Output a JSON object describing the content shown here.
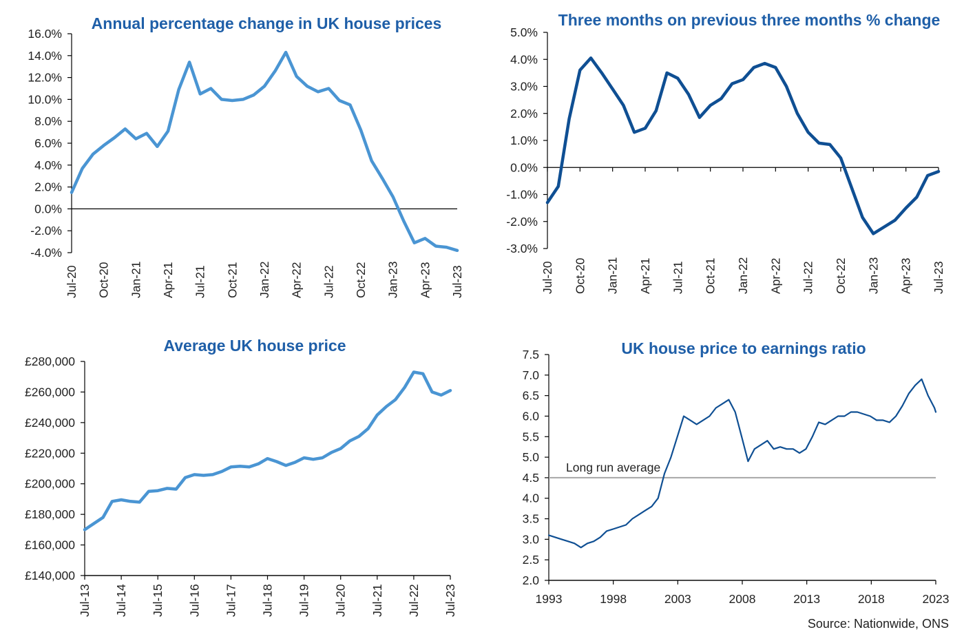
{
  "source_note": "Source: Nationwide, ONS",
  "chart_data": [
    {
      "type": "line",
      "title": "Annual percentage change in UK house prices",
      "y_unit": "percent",
      "ylim": [
        -4,
        16
      ],
      "yticks": [
        "16.0%",
        "14.0%",
        "12.0%",
        "10.0%",
        "8.0%",
        "6.0%",
        "4.0%",
        "2.0%",
        "0.0%",
        "-2.0%",
        "-4.0%"
      ],
      "xticks": [
        "Jul-20",
        "Oct-20",
        "Jan-21",
        "Apr-21",
        "Jul-21",
        "Oct-21",
        "Jan-22",
        "Apr-22",
        "Jul-22",
        "Oct-22",
        "Jan-23",
        "Apr-23",
        "Jul-23"
      ],
      "reference_line": 0,
      "color": "#4a95d3",
      "series": [
        {
          "x": [
            "Jul-20",
            "Aug-20",
            "Sep-20",
            "Oct-20",
            "Nov-20",
            "Dec-20",
            "Jan-21",
            "Feb-21",
            "Mar-21",
            "Apr-21",
            "May-21",
            "Jun-21",
            "Jul-21",
            "Aug-21",
            "Sep-21",
            "Oct-21",
            "Nov-21",
            "Dec-21",
            "Jan-22",
            "Feb-22",
            "Mar-22",
            "Apr-22",
            "May-22",
            "Jun-22",
            "Jul-22",
            "Aug-22",
            "Sep-22",
            "Oct-22",
            "Nov-22",
            "Dec-22",
            "Jan-23",
            "Feb-23",
            "Mar-23",
            "Apr-23",
            "May-23",
            "Jun-23",
            "Jul-23"
          ],
          "values": [
            1.5,
            3.7,
            5.0,
            5.8,
            6.5,
            7.3,
            6.4,
            6.9,
            5.7,
            7.1,
            10.9,
            13.4,
            10.5,
            11.0,
            10.0,
            9.9,
            10.0,
            10.4,
            11.2,
            12.6,
            14.3,
            12.1,
            11.2,
            10.7,
            11.0,
            9.9,
            9.5,
            7.2,
            4.4,
            2.8,
            1.1,
            -1.1,
            -3.1,
            -2.7,
            -3.4,
            -3.5,
            -3.8
          ]
        }
      ]
    },
    {
      "type": "line",
      "title": "Three months on previous three months % change",
      "y_unit": "percent",
      "ylim": [
        -3,
        5
      ],
      "yticks": [
        "5.0%",
        "4.0%",
        "3.0%",
        "2.0%",
        "1.0%",
        "0.0%",
        "-1.0%",
        "-2.0%",
        "-3.0%"
      ],
      "xticks": [
        "Jul-20",
        "Oct-20",
        "Jan-21",
        "Apr-21",
        "Jul-21",
        "Oct-21",
        "Jan-22",
        "Apr-22",
        "Jul-22",
        "Oct-22",
        "Jan-23",
        "Apr-23",
        "Jul-23"
      ],
      "reference_line": 0,
      "color": "#0f4f93",
      "series": [
        {
          "x": [
            "Jul-20",
            "Aug-20",
            "Sep-20",
            "Oct-20",
            "Nov-20",
            "Dec-20",
            "Jan-21",
            "Feb-21",
            "Mar-21",
            "Apr-21",
            "May-21",
            "Jun-21",
            "Jul-21",
            "Aug-21",
            "Sep-21",
            "Oct-21",
            "Nov-21",
            "Dec-21",
            "Jan-22",
            "Feb-22",
            "Mar-22",
            "Apr-22",
            "May-22",
            "Jun-22",
            "Jul-22",
            "Aug-22",
            "Sep-22",
            "Oct-22",
            "Nov-22",
            "Dec-22",
            "Jan-23",
            "Feb-23",
            "Mar-23",
            "Apr-23",
            "May-23",
            "Jun-23",
            "Jul-23"
          ],
          "values": [
            -1.3,
            -0.7,
            1.8,
            3.6,
            4.05,
            3.5,
            2.9,
            2.3,
            1.3,
            1.45,
            2.1,
            3.5,
            3.3,
            2.7,
            1.85,
            2.3,
            2.55,
            3.1,
            3.25,
            3.7,
            3.85,
            3.7,
            3.0,
            2.0,
            1.3,
            0.9,
            0.85,
            0.35,
            -0.75,
            -1.85,
            -2.45,
            -2.2,
            -1.95,
            -1.5,
            -1.1,
            -0.3,
            -0.15
          ]
        }
      ]
    },
    {
      "type": "line",
      "title": "Average UK house price",
      "y_unit": "GBP",
      "ylim": [
        140000,
        280000
      ],
      "yticks": [
        "£280,000",
        "£260,000",
        "£240,000",
        "£220,000",
        "£200,000",
        "£180,000",
        "£160,000",
        "£140,000"
      ],
      "xticks": [
        "Jul-13",
        "Jul-14",
        "Jul-15",
        "Jul-16",
        "Jul-17",
        "Jul-18",
        "Jul-19",
        "Jul-20",
        "Jul-21",
        "Jul-22",
        "Jul-23"
      ],
      "color": "#4a95d3",
      "series": [
        {
          "x": [
            2013.5,
            2013.75,
            2014.0,
            2014.25,
            2014.5,
            2014.75,
            2015.0,
            2015.25,
            2015.5,
            2015.75,
            2016.0,
            2016.25,
            2016.5,
            2016.75,
            2017.0,
            2017.25,
            2017.5,
            2017.75,
            2018.0,
            2018.25,
            2018.5,
            2018.75,
            2019.0,
            2019.25,
            2019.5,
            2019.75,
            2020.0,
            2020.25,
            2020.5,
            2020.75,
            2021.0,
            2021.25,
            2021.5,
            2021.75,
            2022.0,
            2022.25,
            2022.5,
            2022.75,
            2023.0,
            2023.25,
            2023.5
          ],
          "values": [
            170000,
            174000,
            178000,
            188500,
            189500,
            188500,
            188000,
            195000,
            195500,
            197000,
            196500,
            204000,
            206000,
            205500,
            206000,
            208000,
            211000,
            211500,
            211000,
            213000,
            216500,
            214500,
            212000,
            214000,
            217000,
            216000,
            217000,
            220500,
            223000,
            228000,
            231000,
            236000,
            245000,
            250500,
            255000,
            263000,
            273000,
            272000,
            260000,
            258000,
            261000
          ]
        }
      ]
    },
    {
      "type": "line",
      "title": "UK house price to earnings ratio",
      "ylim": [
        2.0,
        7.5
      ],
      "yticks": [
        "7.5",
        "7.0",
        "6.5",
        "6.0",
        "5.5",
        "5.0",
        "4.5",
        "4.0",
        "3.5",
        "3.0",
        "2.5",
        "2.0"
      ],
      "xticks": [
        "1993",
        "1998",
        "2003",
        "2008",
        "2013",
        "2018",
        "2023"
      ],
      "reference_value": 4.5,
      "reference_label": "Long run average",
      "reference_color": "#a6a6a6",
      "color": "#0f4f93",
      "series": [
        {
          "x": [
            1993.0,
            1993.5,
            1994.0,
            1994.5,
            1995.0,
            1995.5,
            1996.0,
            1996.5,
            1997.0,
            1997.5,
            1998.0,
            1998.5,
            1999.0,
            1999.5,
            2000.0,
            2000.5,
            2001.0,
            2001.5,
            2002.0,
            2002.5,
            2003.0,
            2003.5,
            2004.0,
            2004.5,
            2005.0,
            2005.5,
            2006.0,
            2006.5,
            2007.0,
            2007.5,
            2008.0,
            2008.5,
            2009.0,
            2009.5,
            2010.0,
            2010.5,
            2011.0,
            2011.5,
            2012.0,
            2012.5,
            2013.0,
            2013.5,
            2014.0,
            2014.5,
            2015.0,
            2015.5,
            2016.0,
            2016.5,
            2017.0,
            2017.5,
            2018.0,
            2018.5,
            2019.0,
            2019.5,
            2020.0,
            2020.5,
            2021.0,
            2021.5,
            2022.0,
            2022.5,
            2023.0,
            2023.1
          ],
          "values": [
            3.1,
            3.05,
            3.0,
            2.95,
            2.9,
            2.8,
            2.9,
            2.95,
            3.05,
            3.2,
            3.25,
            3.3,
            3.35,
            3.5,
            3.6,
            3.7,
            3.8,
            4.0,
            4.6,
            5.0,
            5.5,
            6.0,
            5.9,
            5.8,
            5.9,
            6.0,
            6.2,
            6.3,
            6.4,
            6.1,
            5.5,
            4.9,
            5.2,
            5.3,
            5.4,
            5.2,
            5.25,
            5.2,
            5.2,
            5.1,
            5.2,
            5.5,
            5.85,
            5.8,
            5.9,
            6.0,
            6.0,
            6.1,
            6.1,
            6.05,
            6.0,
            5.9,
            5.9,
            5.85,
            6.0,
            6.25,
            6.55,
            6.75,
            6.9,
            6.5,
            6.2,
            6.1
          ]
        }
      ]
    }
  ]
}
